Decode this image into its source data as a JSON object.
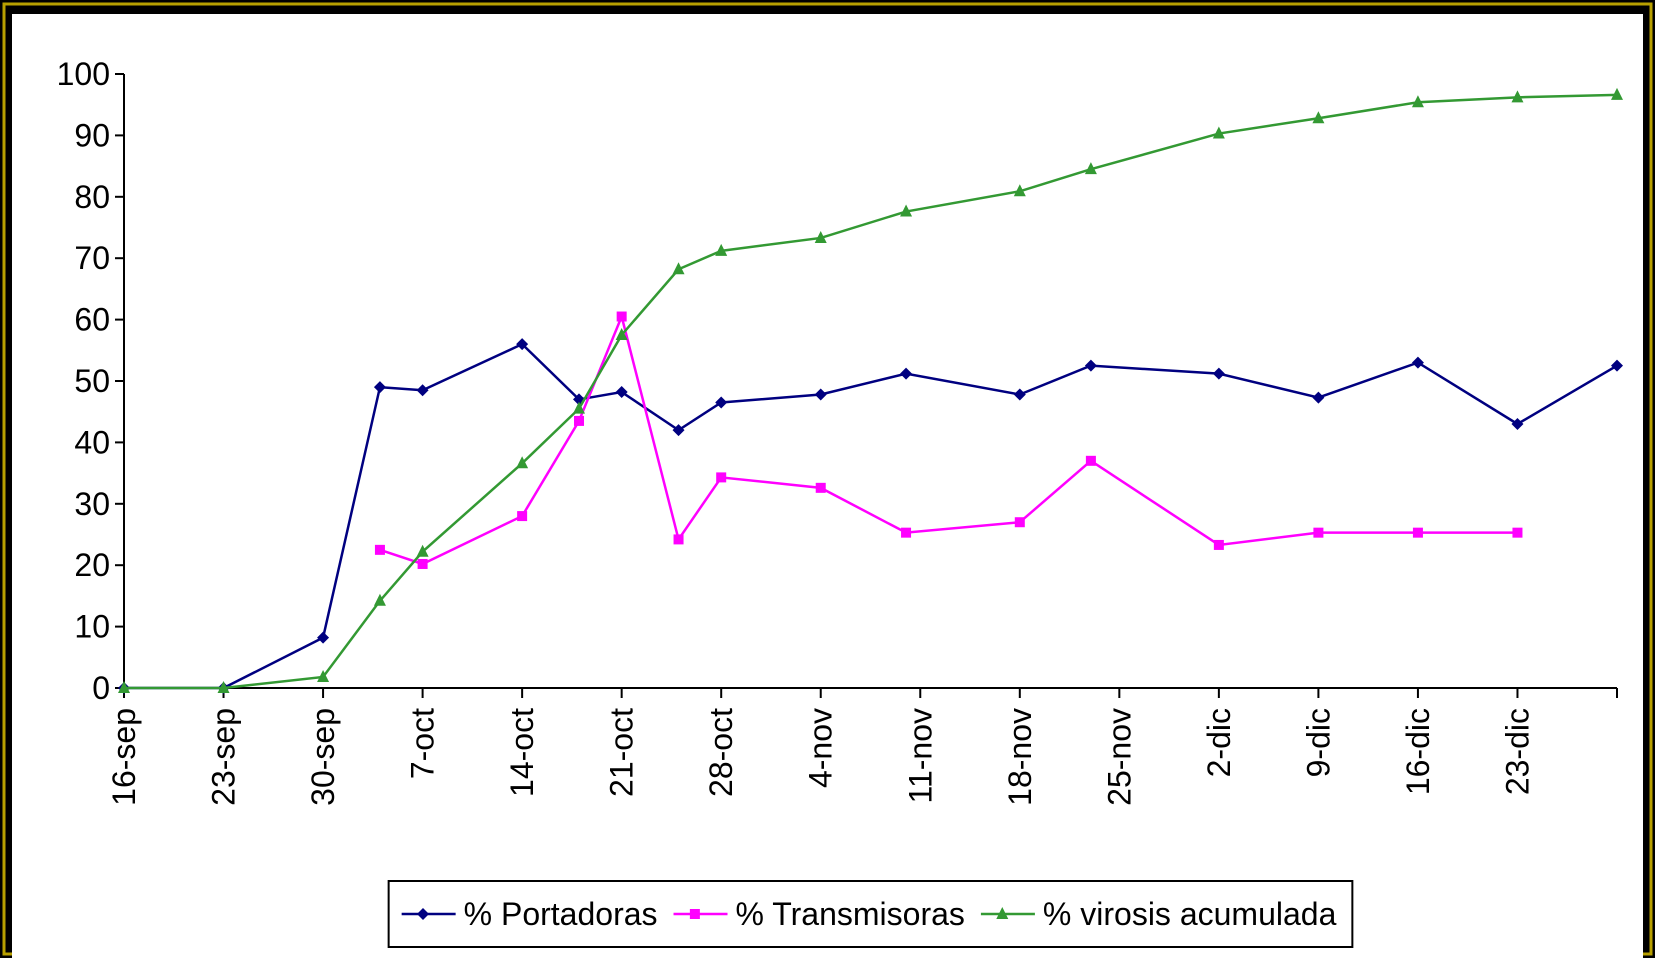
{
  "chart_data": {
    "type": "line",
    "x": [
      0,
      7,
      14,
      18,
      21,
      28,
      32,
      35,
      39,
      42,
      49,
      55,
      63,
      68,
      77,
      84,
      91,
      98,
      105
    ],
    "series": [
      {
        "name": "% Portadoras",
        "color": "#000080",
        "marker": "diamond",
        "values": [
          0,
          0,
          8.2,
          49,
          48.5,
          56,
          47,
          48.2,
          42,
          46.5,
          47.8,
          51.2,
          47.8,
          52.5,
          51.2,
          47.3,
          53,
          43,
          52.5
        ]
      },
      {
        "name": "% Transmisoras",
        "color": "#ff00ff",
        "marker": "square",
        "values": [
          null,
          null,
          null,
          22.5,
          20.2,
          28,
          43.5,
          60.5,
          24.2,
          34.3,
          32.6,
          25.3,
          27,
          37,
          23.3,
          25.3,
          25.3,
          25.3,
          null
        ]
      },
      {
        "name": "% virosis acumulada",
        "color": "#339933",
        "marker": "triangle",
        "values": [
          0,
          0,
          1.8,
          14.2,
          22.2,
          36.6,
          45.5,
          57.5,
          68.2,
          71.2,
          73.3,
          77.6,
          80.9,
          84.5,
          90.3,
          92.8,
          95.4,
          96.2,
          96.6
        ]
      }
    ],
    "xlim": [
      0,
      105
    ],
    "xticks": [
      {
        "value": 0,
        "label": "16-sep"
      },
      {
        "value": 7,
        "label": "23-sep"
      },
      {
        "value": 14,
        "label": "30-sep"
      },
      {
        "value": 21,
        "label": "7-oct"
      },
      {
        "value": 28,
        "label": "14-oct"
      },
      {
        "value": 35,
        "label": "21-oct"
      },
      {
        "value": 42,
        "label": "28-oct"
      },
      {
        "value": 49,
        "label": "4-nov"
      },
      {
        "value": 56,
        "label": "11-nov"
      },
      {
        "value": 63,
        "label": "18-nov"
      },
      {
        "value": 70,
        "label": "25-nov"
      },
      {
        "value": 77,
        "label": "2-dic"
      },
      {
        "value": 84,
        "label": "9-dic"
      },
      {
        "value": 91,
        "label": "16-dic"
      },
      {
        "value": 98,
        "label": "23-dic"
      }
    ],
    "ylim": [
      0,
      100
    ],
    "yticks": [
      0,
      10,
      20,
      30,
      40,
      50,
      60,
      70,
      80,
      90,
      100
    ],
    "grid": false,
    "legend": "bottom"
  }
}
